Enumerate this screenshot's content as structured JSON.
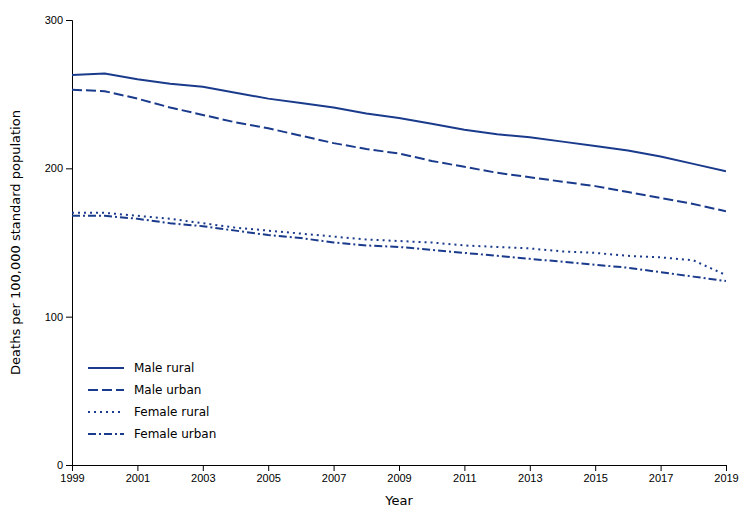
{
  "chart_data": {
    "type": "line",
    "x": [
      1999,
      2000,
      2001,
      2002,
      2003,
      2004,
      2005,
      2006,
      2007,
      2008,
      2009,
      2010,
      2011,
      2012,
      2013,
      2014,
      2015,
      2016,
      2017,
      2018,
      2019
    ],
    "series": [
      {
        "name": "Male rural",
        "color": "#1a3a8c",
        "line_style": "solid",
        "values": [
          263,
          264,
          260,
          257,
          255,
          251,
          247,
          244,
          241,
          237,
          234,
          230,
          226,
          223,
          221,
          218,
          215,
          212,
          208,
          203,
          198
        ]
      },
      {
        "name": "Male urban",
        "color": "#1a3a8c",
        "line_style": "dashed",
        "values": [
          253,
          252,
          247,
          241,
          236,
          231,
          227,
          222,
          217,
          213,
          210,
          205,
          201,
          197,
          194,
          191,
          188,
          184,
          180,
          176,
          171
        ]
      },
      {
        "name": "Female rural",
        "color": "#1a3a8c",
        "line_style": "dotted",
        "values": [
          170,
          170,
          168,
          166,
          163,
          160,
          158,
          156,
          154,
          152,
          151,
          150,
          148,
          147,
          146,
          144,
          143,
          141,
          140,
          138,
          128
        ]
      },
      {
        "name": "Female urban",
        "color": "#1a3a8c",
        "line_style": "dashdot",
        "values": [
          168,
          168,
          166,
          163,
          161,
          158,
          155,
          153,
          150,
          148,
          147,
          145,
          143,
          141,
          139,
          137,
          135,
          133,
          130,
          127,
          124
        ]
      }
    ],
    "xlabel": "Year",
    "ylabel": "Deaths per 100,000 standard population",
    "xlim": [
      1999,
      2019
    ],
    "xticks": [
      1999,
      2001,
      2003,
      2005,
      2007,
      2009,
      2011,
      2013,
      2015,
      2017,
      2019
    ],
    "ylim": [
      0,
      300
    ],
    "yticks": [
      0,
      100,
      200,
      300
    ],
    "grid": false,
    "legend": "lower left"
  }
}
